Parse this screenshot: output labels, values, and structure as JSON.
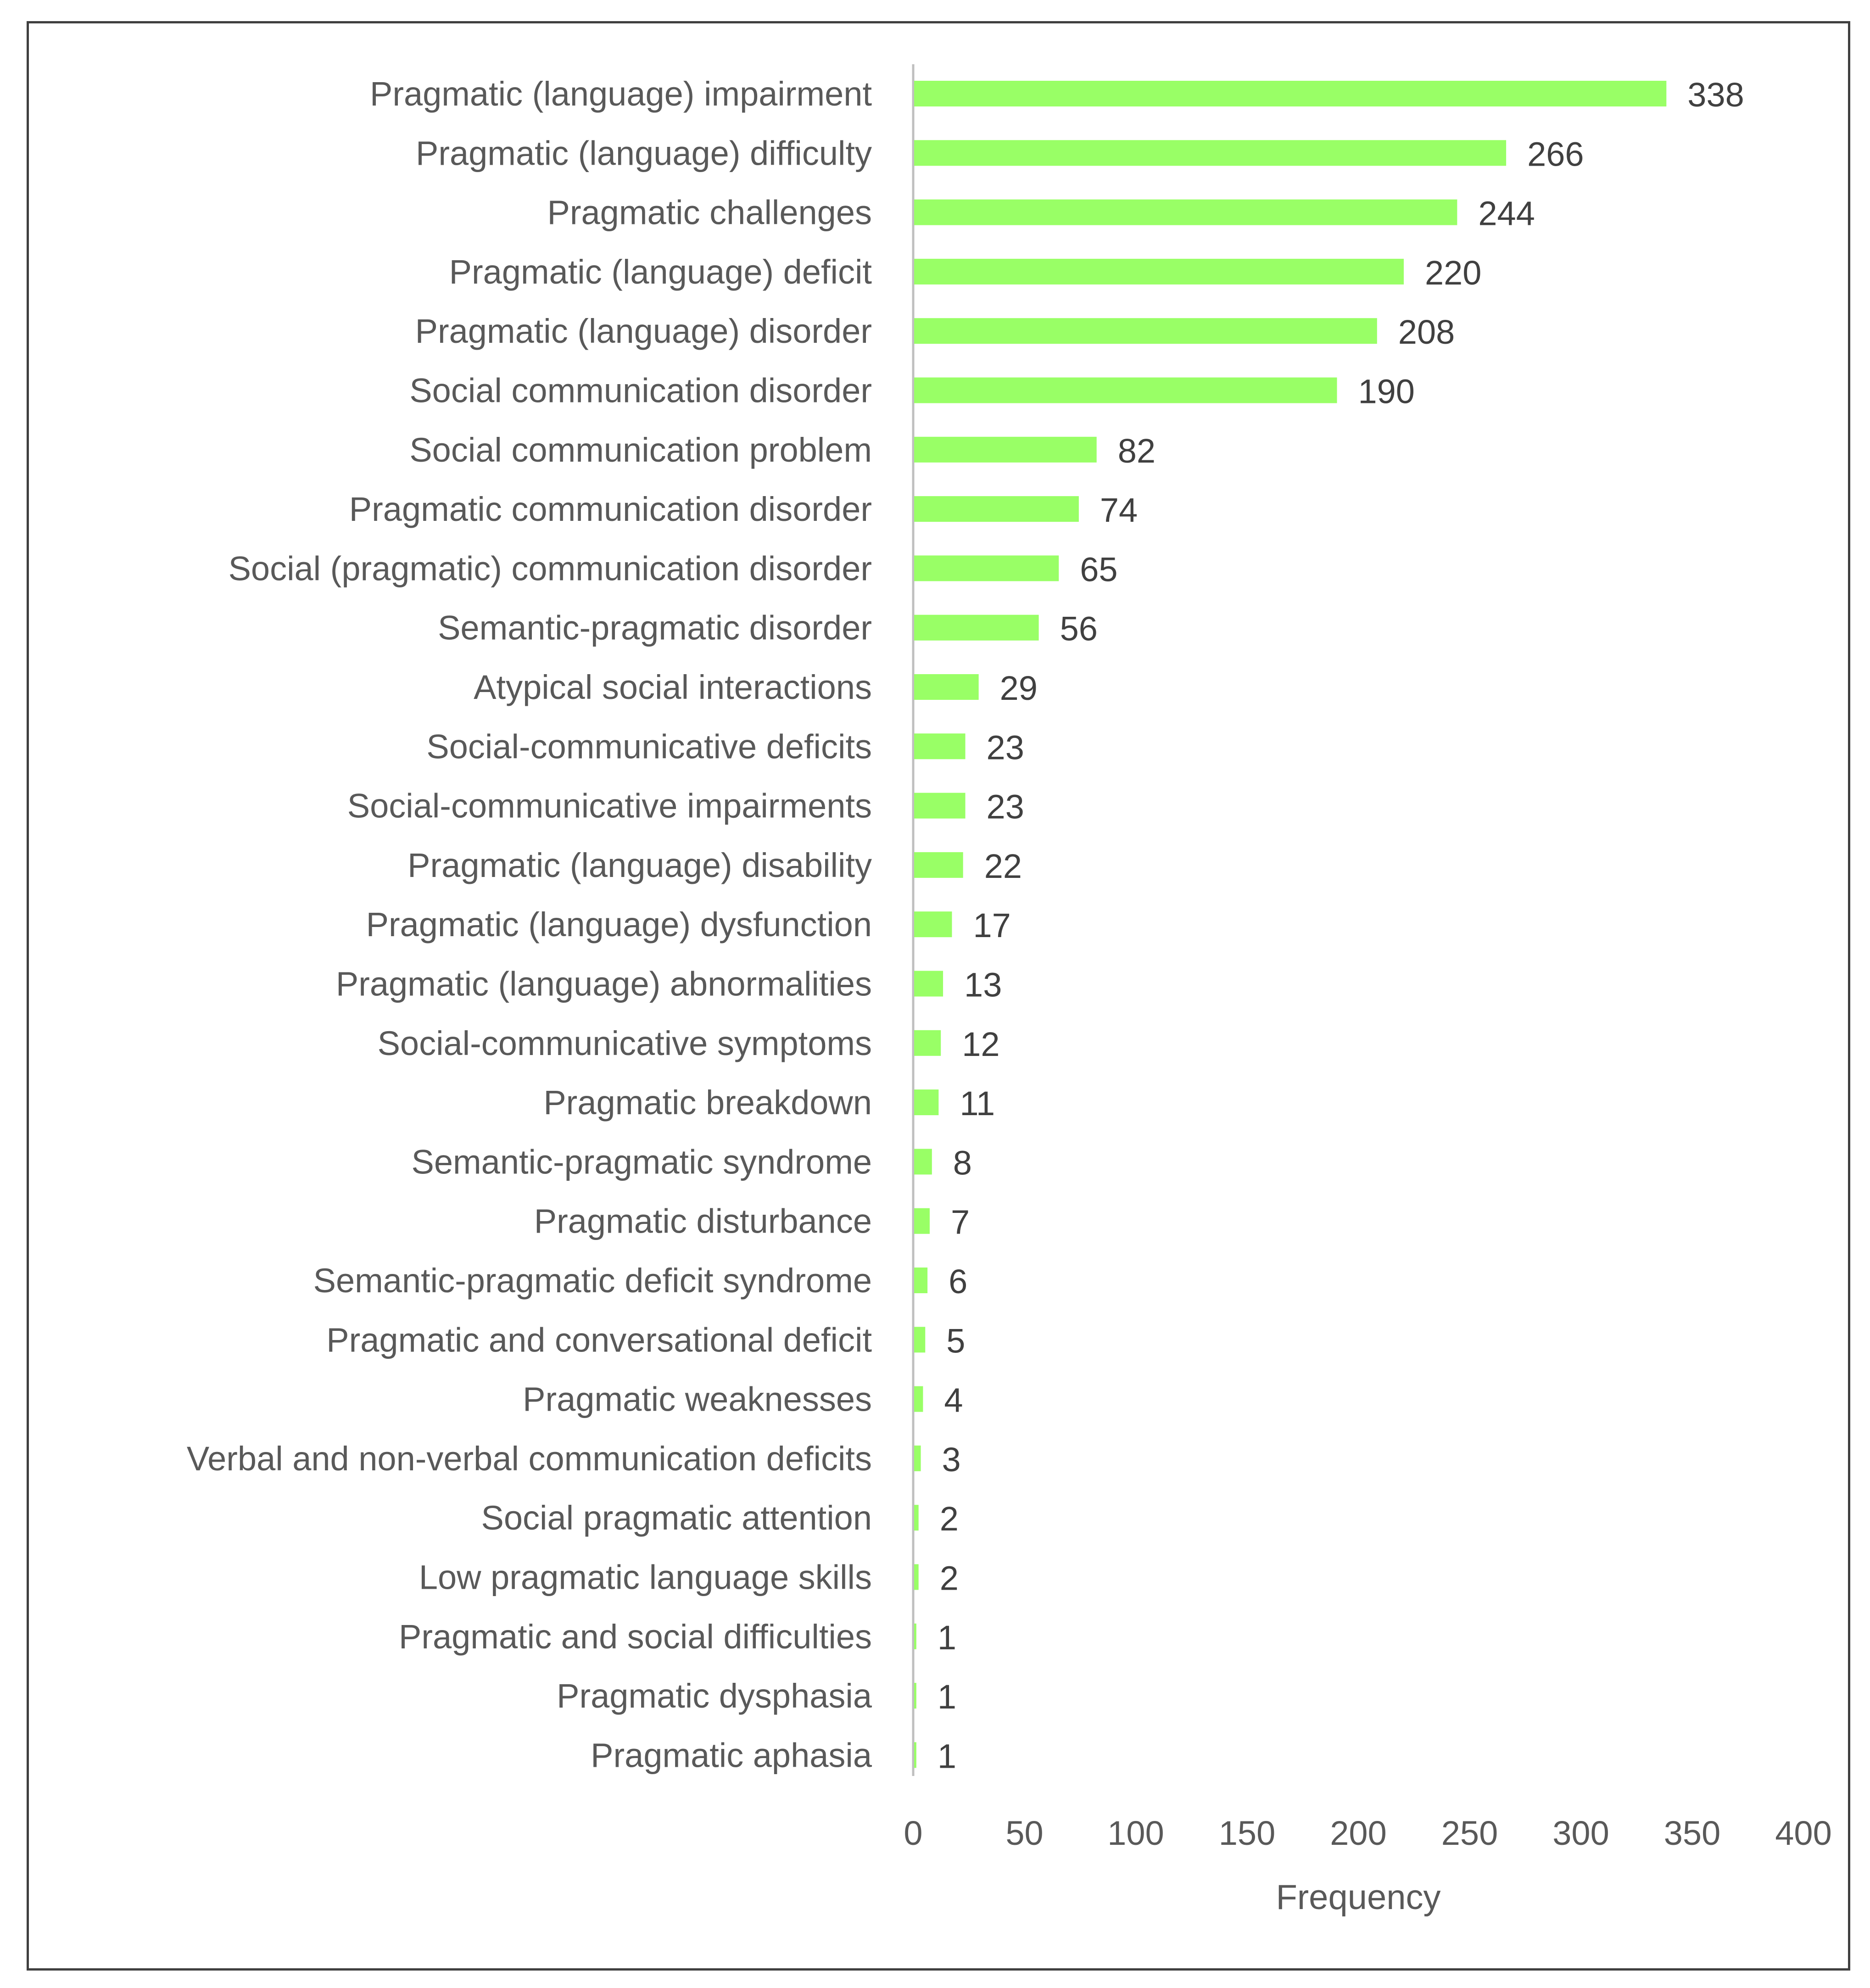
{
  "chart_data": {
    "type": "bar",
    "orientation": "horizontal",
    "title": "",
    "xlabel": "Frequency",
    "ylabel": "",
    "xlim": [
      0,
      400
    ],
    "xticks": [
      0,
      50,
      100,
      150,
      200,
      250,
      300,
      350,
      400
    ],
    "grid": false,
    "legend": "none",
    "bar_color": "#99ff66",
    "axis_color": "#bfbfbf",
    "categories": [
      "Pragmatic (language) impairment",
      "Pragmatic (language) difficulty",
      "Pragmatic challenges",
      "Pragmatic (language) deficit",
      "Pragmatic (language) disorder",
      "Social communication disorder",
      "Social communication problem",
      "Pragmatic communication disorder",
      "Social (pragmatic) communication disorder",
      "Semantic-pragmatic disorder",
      "Atypical social interactions",
      "Social-communicative deficits",
      "Social-communicative impairments",
      "Pragmatic (language) disability",
      "Pragmatic (language) dysfunction",
      "Pragmatic (language) abnormalities",
      "Social-communicative symptoms",
      "Pragmatic breakdown",
      "Semantic-pragmatic syndrome",
      "Pragmatic disturbance",
      "Semantic-pragmatic deficit syndrome",
      "Pragmatic and conversational deficit",
      "Pragmatic weaknesses",
      "Verbal and non-verbal communication deficits",
      "Social pragmatic attention",
      "Low pragmatic language skills",
      "Pragmatic and social difficulties",
      "Pragmatic dysphasia",
      "Pragmatic aphasia"
    ],
    "values": [
      338,
      266,
      244,
      220,
      208,
      190,
      82,
      74,
      65,
      56,
      29,
      23,
      23,
      22,
      17,
      13,
      12,
      11,
      8,
      7,
      6,
      5,
      4,
      3,
      2,
      2,
      1,
      1,
      1
    ]
  }
}
